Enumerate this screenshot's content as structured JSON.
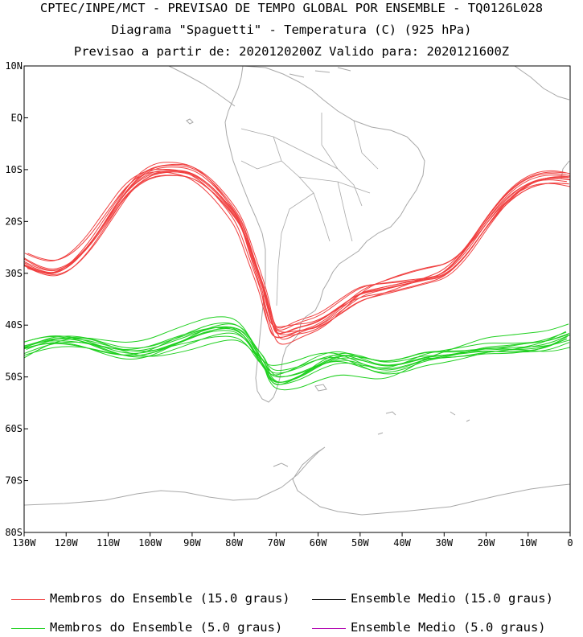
{
  "header": {
    "line1": "CPTEC/INPE/MCT - PREVISAO DE TEMPO GLOBAL POR ENSEMBLE - TQ0126L028",
    "line2": "Diagrama \"Spaguetti\" - Temperatura (C) (925 hPa)",
    "line3": "Previsao a partir de: 2020120200Z  Valido para: 2020121600Z"
  },
  "chart_data": {
    "type": "line",
    "xlim": [
      -130,
      0
    ],
    "ylim": [
      -80,
      10
    ],
    "x_ticks": [
      -130,
      -120,
      -110,
      -100,
      -90,
      -80,
      -70,
      -60,
      -50,
      -40,
      -30,
      -20,
      -10,
      0
    ],
    "x_tick_labels": [
      "130W",
      "120W",
      "110W",
      "100W",
      "90W",
      "80W",
      "70W",
      "60W",
      "50W",
      "40W",
      "30W",
      "20W",
      "10W",
      "0"
    ],
    "y_ticks": [
      10,
      0,
      -10,
      -20,
      -30,
      -40,
      -50,
      -60,
      -70,
      -80
    ],
    "y_tick_labels": [
      "10N",
      "EQ",
      "10S",
      "20S",
      "30S",
      "40S",
      "50S",
      "60S",
      "70S",
      "80S"
    ],
    "colors": {
      "members_15": "#f04040",
      "members_5": "#20d020",
      "mean_15": "#000000",
      "mean_5": "#b000b0",
      "coast": "#a8a8a8"
    },
    "series": [
      {
        "name": "Membros do Ensemble (15.0 graus)",
        "color": "#f04040",
        "x": [
          -130,
          -125,
          -120,
          -115,
          -110,
          -105,
          -100,
          -95,
          -90,
          -85,
          -80,
          -78,
          -76,
          -73,
          -72,
          -71,
          -70,
          -68,
          -65,
          -60,
          -55,
          -50,
          -45,
          -40,
          -35,
          -30,
          -25,
          -20,
          -15,
          -10,
          -5,
          0
        ],
        "y": [
          -28,
          -30,
          -29,
          -25,
          -19,
          -13,
          -10,
          -9.5,
          -10,
          -13,
          -18,
          -21,
          -26,
          -33,
          -37,
          -40,
          -42,
          -42,
          -41,
          -40,
          -37,
          -34,
          -33,
          -32,
          -31,
          -30,
          -26,
          -20,
          -15,
          -12,
          -11,
          -11.5
        ]
      },
      {
        "name": "Membros do Ensemble (5.0 graus)",
        "color": "#20d020",
        "x": [
          -130,
          -125,
          -120,
          -115,
          -110,
          -105,
          -100,
          -95,
          -90,
          -85,
          -80,
          -77,
          -75,
          -73,
          -72,
          -70,
          -65,
          -60,
          -55,
          -50,
          -45,
          -40,
          -35,
          -30,
          -25,
          -20,
          -15,
          -10,
          -5,
          0
        ],
        "y": [
          -45,
          -43,
          -42,
          -42,
          -43,
          -44,
          -44,
          -43,
          -42,
          -41,
          -41,
          -43,
          -46,
          -48,
          -50,
          -51,
          -50,
          -48,
          -47,
          -48,
          -49,
          -48,
          -46,
          -45,
          -44,
          -43,
          -43,
          -43,
          -43,
          -42
        ]
      },
      {
        "name": "Ensemble Medio (15.0 graus)",
        "color": "#000000",
        "x": [],
        "y": []
      },
      {
        "name": "Ensemble Medio (5.0 graus)",
        "color": "#b000b0",
        "x": [],
        "y": []
      }
    ]
  },
  "legend": {
    "members_15": "Membros do Ensemble (15.0 graus)",
    "mean_15": "Ensemble Medio (15.0 graus)",
    "members_5": "Membros do Ensemble (5.0 graus)",
    "mean_5": "Ensemble Medio (5.0 graus)"
  }
}
